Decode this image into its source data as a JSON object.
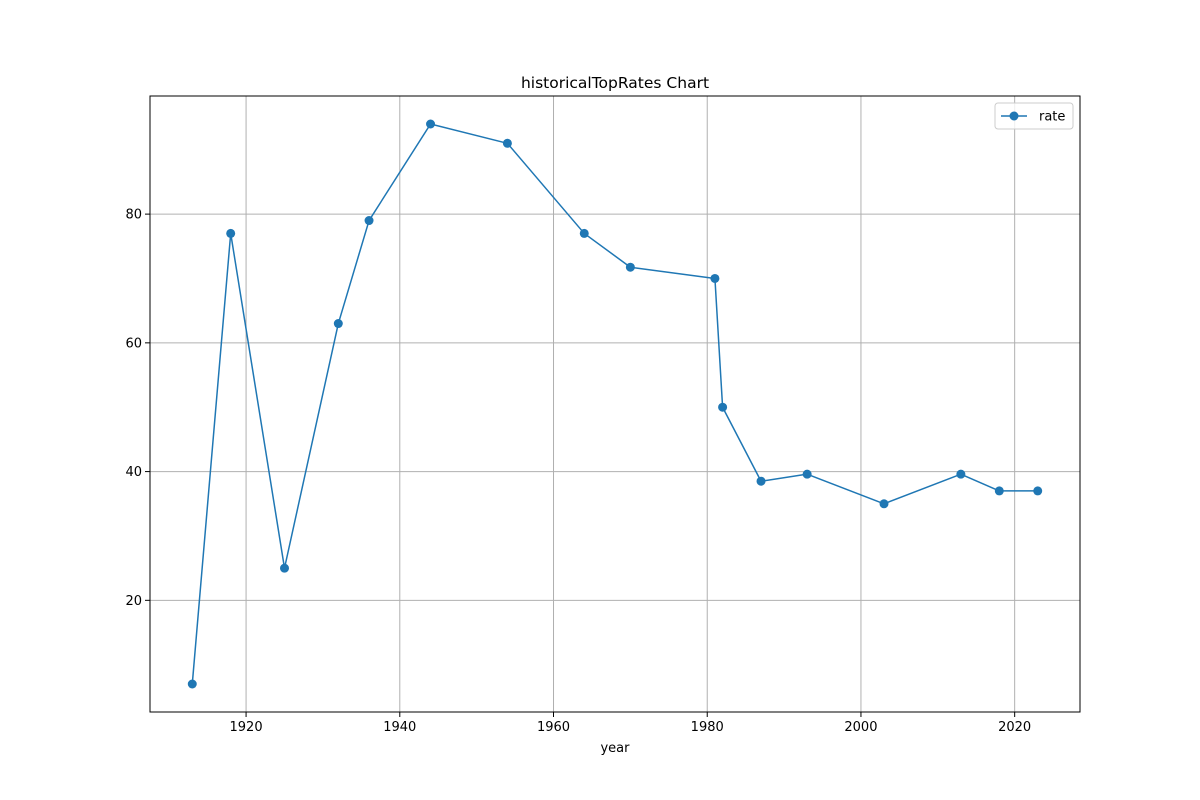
{
  "chart_data": {
    "type": "line",
    "title": "historicalTopRates Chart",
    "xlabel": "year",
    "ylabel": "",
    "xlim": [
      1907.5,
      2028.5
    ],
    "ylim": [
      2.65,
      98.35
    ],
    "xticks": [
      1920,
      1940,
      1960,
      1980,
      2000,
      2020
    ],
    "yticks": [
      20,
      40,
      60,
      80
    ],
    "grid": true,
    "legend_position": "top-right",
    "series": [
      {
        "name": "rate",
        "color": "#1f77b4",
        "marker": "circle",
        "x": [
          1913,
          1918,
          1925,
          1932,
          1936,
          1944,
          1954,
          1964,
          1970,
          1981,
          1982,
          1987,
          1993,
          2003,
          2013,
          2018,
          2023
        ],
        "y": [
          7,
          77,
          25,
          63,
          79,
          94,
          91,
          77,
          71.75,
          70,
          50,
          38.5,
          39.6,
          35,
          39.6,
          37,
          37
        ]
      }
    ]
  }
}
